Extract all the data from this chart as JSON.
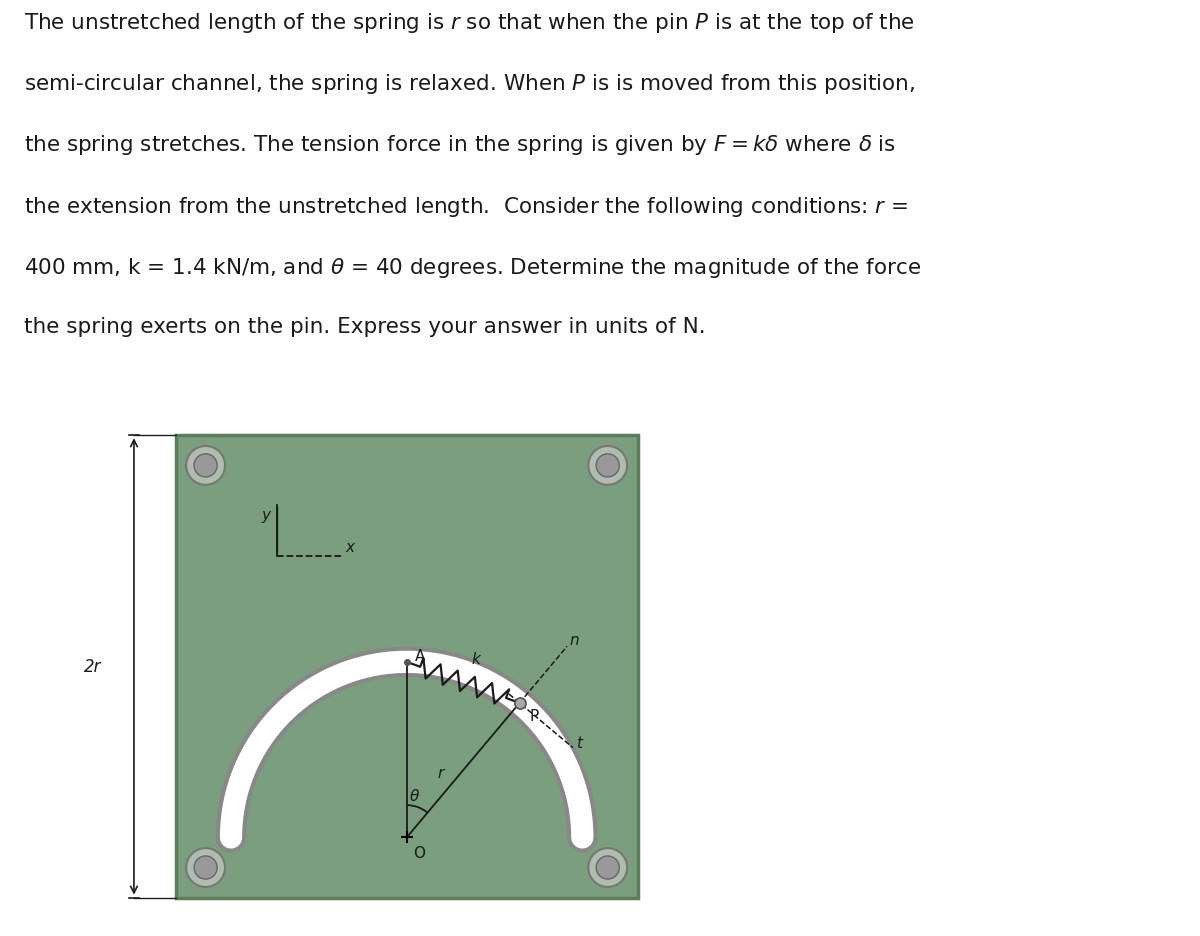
{
  "text_lines": [
    "The unstretched length of the spring is $r$ so that when the pin $P$ is at the top of the",
    "semi-circular channel, the spring is relaxed. When $P$ is is moved from this position,",
    "the spring stretches. The tension force in the spring is given by $F = k\\delta$ where $\\delta$ is",
    "the extension from the unstretched length.  Consider the following conditions: $r$ =",
    "400 mm, k = 1.4 kN/m, and $\\theta$ = 40 degrees. Determine the magnitude of the force",
    "the spring exerts on the pin. Express your answer in units of N."
  ],
  "bg_color": "#ffffff",
  "panel_color": "#7a9e7e",
  "panel_border_color": "#5a7e5a",
  "line_color": "#1a1a1a",
  "spring_color": "#1a1a1a",
  "text_color": "#1a1a1a",
  "theta_deg": 40,
  "label_fontsize": 11,
  "body_fontsize": 15.5
}
